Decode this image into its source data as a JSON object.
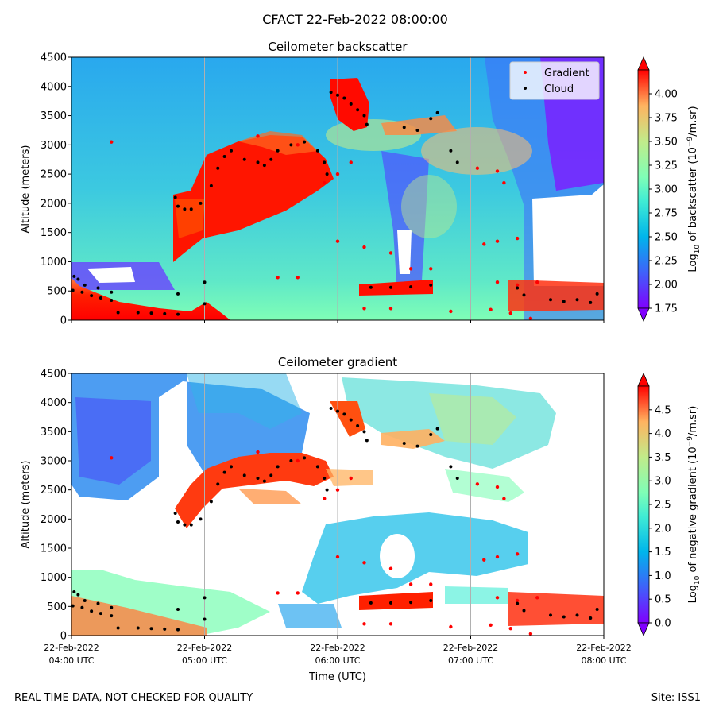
{
  "figure": {
    "suptitle": "CFACT 22-Feb-2022 08:00:00",
    "footer_left": "REAL TIME DATA, NOT CHECKED FOR QUALITY",
    "footer_right": "Site: ISS1",
    "xlabel": "Time (UTC)",
    "xticks": [
      {
        "line1": "22-Feb-2022",
        "line2": "04:00 UTC",
        "hour": 4
      },
      {
        "line1": "22-Feb-2022",
        "line2": "05:00 UTC",
        "hour": 5
      },
      {
        "line1": "22-Feb-2022",
        "line2": "06:00 UTC",
        "hour": 6
      },
      {
        "line1": "22-Feb-2022",
        "line2": "07:00 UTC",
        "hour": 7
      },
      {
        "line1": "22-Feb-2022",
        "line2": "08:00 UTC",
        "hour": 8
      }
    ],
    "colors": {
      "gradient_marker": "#ff0000",
      "cloud_marker": "#000000",
      "grid": "#b0b0b0"
    }
  },
  "chart_data": [
    {
      "type": "heatmap",
      "title": "Ceilometer backscatter",
      "ylabel": "Altitude (meters)",
      "ylim": [
        0,
        4500
      ],
      "xlim_hours": [
        4,
        8
      ],
      "yticks": [
        "0",
        "500",
        "1000",
        "1500",
        "2000",
        "2500",
        "3000",
        "3500",
        "4000",
        "4500"
      ],
      "colorbar": {
        "label_prefix": "Log",
        "label_sub": "10",
        "label_mid": " of backscatter (10",
        "label_sup": "−9",
        "label_suffix": "/m.sr)",
        "range": [
          1.75,
          4.25
        ],
        "ticks": [
          "1.75",
          "2.00",
          "2.25",
          "2.50",
          "2.75",
          "3.00",
          "3.25",
          "3.50",
          "3.75",
          "4.00"
        ],
        "colormap": "rainbow"
      },
      "legend": {
        "position": "top-right",
        "entries": [
          "Gradient",
          "Cloud"
        ]
      },
      "grid": "vertical at hour ticks",
      "cloud_points": [
        [
          4.02,
          750
        ],
        [
          4.05,
          700
        ],
        [
          4.1,
          600
        ],
        [
          4.2,
          550
        ],
        [
          4.3,
          480
        ],
        [
          4.01,
          510
        ],
        [
          4.08,
          480
        ],
        [
          4.15,
          420
        ],
        [
          4.22,
          380
        ],
        [
          4.3,
          340
        ],
        [
          4.35,
          130
        ],
        [
          4.5,
          130
        ],
        [
          4.6,
          120
        ],
        [
          4.7,
          110
        ],
        [
          4.8,
          100
        ],
        [
          4.78,
          2100
        ],
        [
          4.8,
          1950
        ],
        [
          4.85,
          1900
        ],
        [
          4.9,
          1900
        ],
        [
          4.97,
          2000
        ],
        [
          5.05,
          2300
        ],
        [
          5.1,
          2600
        ],
        [
          5.15,
          2800
        ],
        [
          5.2,
          2900
        ],
        [
          5.3,
          2750
        ],
        [
          5.4,
          2700
        ],
        [
          5.45,
          2650
        ],
        [
          5.5,
          2750
        ],
        [
          5.55,
          2900
        ],
        [
          5.65,
          3000
        ],
        [
          5.75,
          3050
        ],
        [
          5.85,
          2900
        ],
        [
          5.9,
          2700
        ],
        [
          5.92,
          2500
        ],
        [
          5.95,
          3900
        ],
        [
          6.0,
          3850
        ],
        [
          6.05,
          3800
        ],
        [
          6.1,
          3700
        ],
        [
          6.15,
          3600
        ],
        [
          6.2,
          3500
        ],
        [
          6.22,
          3350
        ],
        [
          6.5,
          3300
        ],
        [
          6.6,
          3250
        ],
        [
          6.7,
          3450
        ],
        [
          6.75,
          3550
        ],
        [
          6.85,
          2900
        ],
        [
          6.9,
          2700
        ],
        [
          5.0,
          650
        ],
        [
          5.0,
          280
        ],
        [
          4.8,
          450
        ],
        [
          6.25,
          560
        ],
        [
          6.4,
          560
        ],
        [
          6.55,
          570
        ],
        [
          6.7,
          600
        ],
        [
          7.35,
          550
        ],
        [
          7.4,
          430
        ],
        [
          7.6,
          350
        ],
        [
          7.7,
          320
        ],
        [
          7.8,
          350
        ],
        [
          7.9,
          300
        ],
        [
          7.95,
          450
        ]
      ],
      "gradient_points": [
        [
          4.3,
          3050
        ],
        [
          5.4,
          3150
        ],
        [
          5.7,
          3000
        ],
        [
          6.1,
          2700
        ],
        [
          6.0,
          2500
        ],
        [
          5.9,
          2350
        ],
        [
          6.0,
          1350
        ],
        [
          6.2,
          1250
        ],
        [
          6.4,
          1150
        ],
        [
          7.05,
          2600
        ],
        [
          7.2,
          2550
        ],
        [
          7.25,
          2350
        ],
        [
          7.1,
          1300
        ],
        [
          7.2,
          1350
        ],
        [
          7.35,
          1400
        ],
        [
          5.55,
          730
        ],
        [
          5.7,
          730
        ],
        [
          6.2,
          200
        ],
        [
          6.4,
          200
        ],
        [
          6.55,
          880
        ],
        [
          6.7,
          880
        ],
        [
          7.2,
          650
        ],
        [
          7.35,
          600
        ],
        [
          7.5,
          650
        ],
        [
          6.85,
          150
        ],
        [
          7.15,
          180
        ],
        [
          7.3,
          120
        ],
        [
          7.45,
          30
        ]
      ]
    },
    {
      "type": "heatmap",
      "title": "Ceilometer gradient",
      "ylabel": "Altitude (meters)",
      "ylim": [
        0,
        4500
      ],
      "xlim_hours": [
        4,
        8
      ],
      "yticks": [
        "0",
        "500",
        "1000",
        "1500",
        "2000",
        "2500",
        "3000",
        "3500",
        "4000",
        "4500"
      ],
      "colorbar": {
        "label_prefix": "Log",
        "label_sub": "10",
        "label_mid": " of negative gradient (10",
        "label_sup": "−9",
        "label_suffix": "/m.sr)",
        "range": [
          0,
          5
        ],
        "ticks": [
          "0.0",
          "0.5",
          "1.0",
          "1.5",
          "2.0",
          "2.5",
          "3.0",
          "3.5",
          "4.0",
          "4.5"
        ],
        "colormap": "rainbow"
      },
      "grid": "vertical at hour ticks"
    }
  ]
}
